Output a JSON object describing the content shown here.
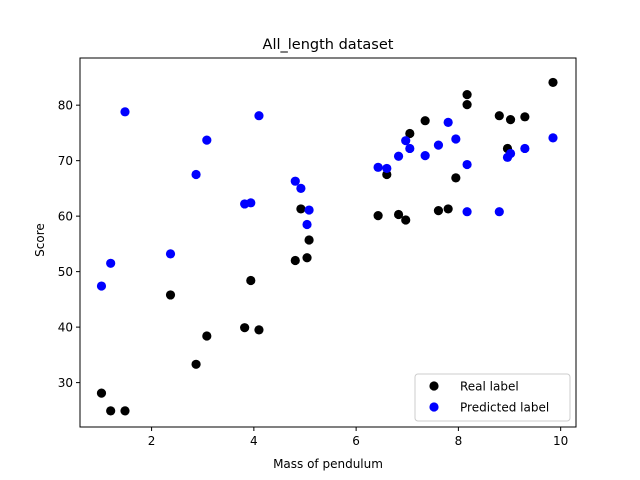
{
  "chart_data": {
    "type": "scatter",
    "title": "All_length dataset",
    "xlabel": "Mass of pendulum",
    "ylabel": "Score",
    "xlim": [
      0.6,
      10.3
    ],
    "ylim": [
      22,
      88.5
    ],
    "xticks": [
      2,
      4,
      6,
      8,
      10
    ],
    "yticks": [
      30,
      40,
      50,
      60,
      70,
      80
    ],
    "grid": false,
    "legend_position": "lower-right",
    "series": [
      {
        "name": "Real label",
        "color": "#000000",
        "points": [
          [
            1.02,
            28.1
          ],
          [
            1.2,
            24.9
          ],
          [
            1.48,
            24.9
          ],
          [
            2.37,
            45.8
          ],
          [
            2.87,
            33.3
          ],
          [
            3.08,
            38.4
          ],
          [
            3.82,
            39.9
          ],
          [
            3.94,
            48.4
          ],
          [
            4.1,
            39.5
          ],
          [
            4.81,
            52.0
          ],
          [
            4.92,
            61.3
          ],
          [
            5.04,
            52.5
          ],
          [
            5.08,
            55.7
          ],
          [
            6.43,
            60.1
          ],
          [
            6.6,
            67.5
          ],
          [
            6.83,
            60.3
          ],
          [
            6.97,
            59.3
          ],
          [
            7.05,
            74.9
          ],
          [
            7.35,
            77.2
          ],
          [
            7.61,
            61.0
          ],
          [
            7.8,
            61.3
          ],
          [
            7.95,
            66.9
          ],
          [
            8.17,
            81.9
          ],
          [
            8.17,
            80.1
          ],
          [
            8.8,
            78.1
          ],
          [
            8.96,
            72.2
          ],
          [
            9.02,
            77.4
          ],
          [
            9.3,
            77.9
          ],
          [
            9.85,
            84.1
          ]
        ]
      },
      {
        "name": "Predicted label",
        "color": "#0000ff",
        "points": [
          [
            1.02,
            47.4
          ],
          [
            1.2,
            51.5
          ],
          [
            1.48,
            78.8
          ],
          [
            2.37,
            53.2
          ],
          [
            2.87,
            67.5
          ],
          [
            3.08,
            73.7
          ],
          [
            3.82,
            62.2
          ],
          [
            3.94,
            62.4
          ],
          [
            4.1,
            78.1
          ],
          [
            4.81,
            66.3
          ],
          [
            4.92,
            65.0
          ],
          [
            5.04,
            58.5
          ],
          [
            5.08,
            61.1
          ],
          [
            6.43,
            68.8
          ],
          [
            6.6,
            68.6
          ],
          [
            6.83,
            70.8
          ],
          [
            6.97,
            73.6
          ],
          [
            7.05,
            72.2
          ],
          [
            7.35,
            70.9
          ],
          [
            7.61,
            72.8
          ],
          [
            7.8,
            76.9
          ],
          [
            7.95,
            73.9
          ],
          [
            8.17,
            60.8
          ],
          [
            8.17,
            69.3
          ],
          [
            8.8,
            60.8
          ],
          [
            8.96,
            70.6
          ],
          [
            9.02,
            71.3
          ],
          [
            9.3,
            72.2
          ],
          [
            9.85,
            74.1
          ]
        ]
      }
    ]
  }
}
